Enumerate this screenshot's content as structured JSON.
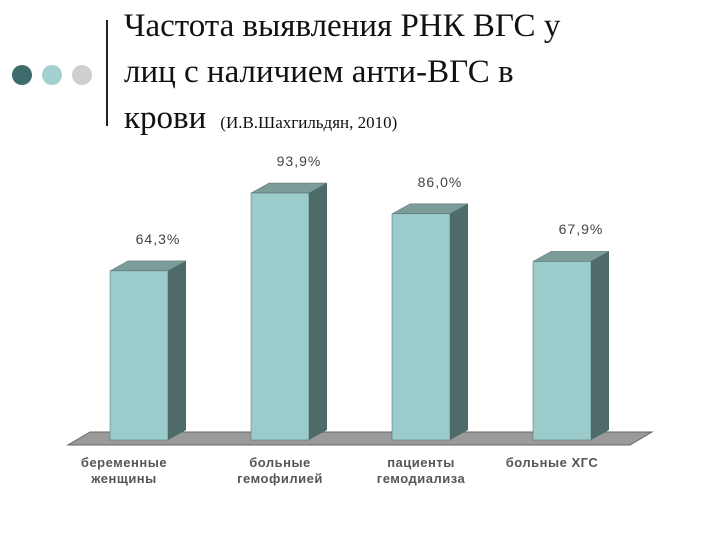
{
  "chart_data": {
    "type": "bar3d",
    "title": [
      "Частота выявления РНК ВГС у",
      "лиц с наличием анти-ВГС в",
      "крови"
    ],
    "subtitle": "(И.В.Шахгильдян, 2010)",
    "categories": [
      "беременные женщины",
      "больные гемофилией",
      "пациенты гемодиализа",
      "больные ХГС"
    ],
    "values": [
      64.3,
      93.9,
      86.0,
      67.9
    ],
    "value_labels": [
      "64,3%",
      "93,9%",
      "86,0%",
      "67,9%"
    ],
    "color": "#9ccbcb"
  }
}
